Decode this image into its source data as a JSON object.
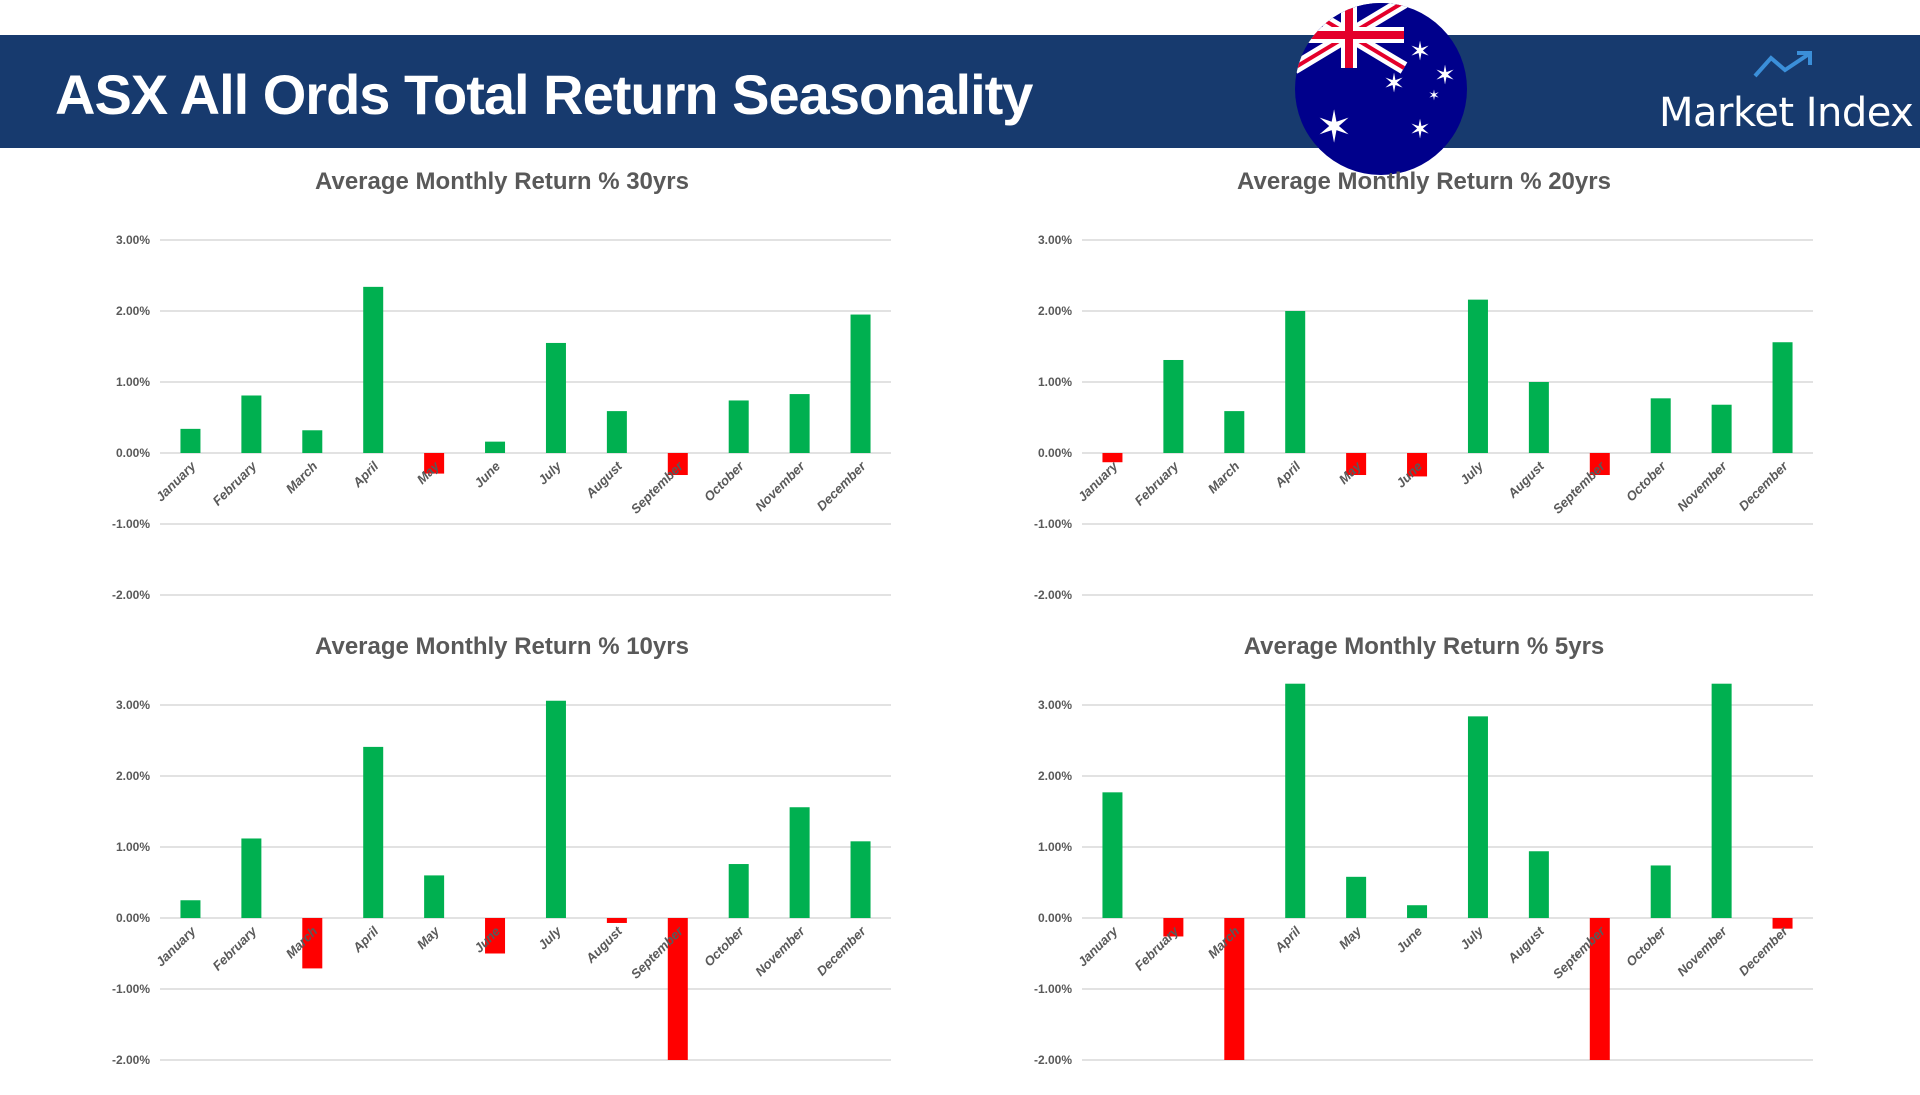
{
  "header": {
    "title": "ASX All Ords Total Return Seasonality",
    "logo_text": "Market Index",
    "logo_icon": "trend-up-arrow-icon",
    "flag": "australian-flag",
    "band_color": "#173a6e"
  },
  "colors": {
    "positive": "#00b050",
    "negative": "#ff0000",
    "grid": "#d9d9d9",
    "text": "#595959"
  },
  "chart_data": [
    {
      "type": "bar",
      "title": "Average Monthly Return % 30yrs",
      "categories": [
        "January",
        "February",
        "March",
        "April",
        "May",
        "June",
        "July",
        "August",
        "September",
        "October",
        "November",
        "December"
      ],
      "values": [
        0.34,
        0.81,
        0.32,
        2.34,
        -0.29,
        0.16,
        1.55,
        0.59,
        -0.31,
        0.74,
        0.83,
        1.95
      ],
      "ylim": [
        -2,
        3
      ],
      "yticks": [
        "3.00%",
        "2.00%",
        "1.00%",
        "0.00%",
        "-1.00%",
        "-2.00%"
      ],
      "ytick_values": [
        3,
        2,
        1,
        0,
        -1,
        -2
      ],
      "grid": true,
      "legend": "none"
    },
    {
      "type": "bar",
      "title": "Average Monthly Return % 20yrs",
      "categories": [
        "January",
        "February",
        "March",
        "April",
        "May",
        "June",
        "July",
        "August",
        "September",
        "October",
        "November",
        "December"
      ],
      "values": [
        -0.13,
        1.31,
        0.59,
        2.0,
        -0.31,
        -0.33,
        2.16,
        1.0,
        -0.31,
        0.77,
        0.68,
        1.56
      ],
      "ylim": [
        -2,
        3
      ],
      "yticks": [
        "3.00%",
        "2.00%",
        "1.00%",
        "0.00%",
        "-1.00%",
        "-2.00%"
      ],
      "ytick_values": [
        3,
        2,
        1,
        0,
        -1,
        -2
      ],
      "grid": true,
      "legend": "none"
    },
    {
      "type": "bar",
      "title": "Average Monthly Return % 10yrs",
      "categories": [
        "January",
        "February",
        "March",
        "April",
        "May",
        "June",
        "July",
        "August",
        "September",
        "October",
        "November",
        "December"
      ],
      "values": [
        0.25,
        1.12,
        -0.71,
        2.41,
        0.6,
        -0.5,
        3.06,
        -0.07,
        -2.0,
        0.76,
        1.56,
        1.08
      ],
      "ylim": [
        -2,
        3.1
      ],
      "yticks": [
        "3.00%",
        "2.00%",
        "1.00%",
        "0.00%",
        "-1.00%",
        "-2.00%"
      ],
      "ytick_values": [
        3,
        2,
        1,
        0,
        -1,
        -2
      ],
      "grid": true,
      "legend": "none"
    },
    {
      "type": "bar",
      "title": "Average Monthly Return % 5yrs",
      "categories": [
        "January",
        "February",
        "March",
        "April",
        "May",
        "June",
        "July",
        "August",
        "September",
        "October",
        "November",
        "December"
      ],
      "values": [
        1.77,
        -0.26,
        -2.0,
        3.3,
        0.58,
        0.18,
        2.84,
        0.94,
        -2.0,
        0.74,
        3.3,
        -0.15
      ],
      "ylim": [
        -2,
        3.3
      ],
      "yticks": [
        "3.00%",
        "2.00%",
        "1.00%",
        "0.00%",
        "-1.00%",
        "-2.00%"
      ],
      "ytick_values": [
        3,
        2,
        1,
        0,
        -1,
        -2
      ],
      "grid": true,
      "legend": "none"
    }
  ]
}
